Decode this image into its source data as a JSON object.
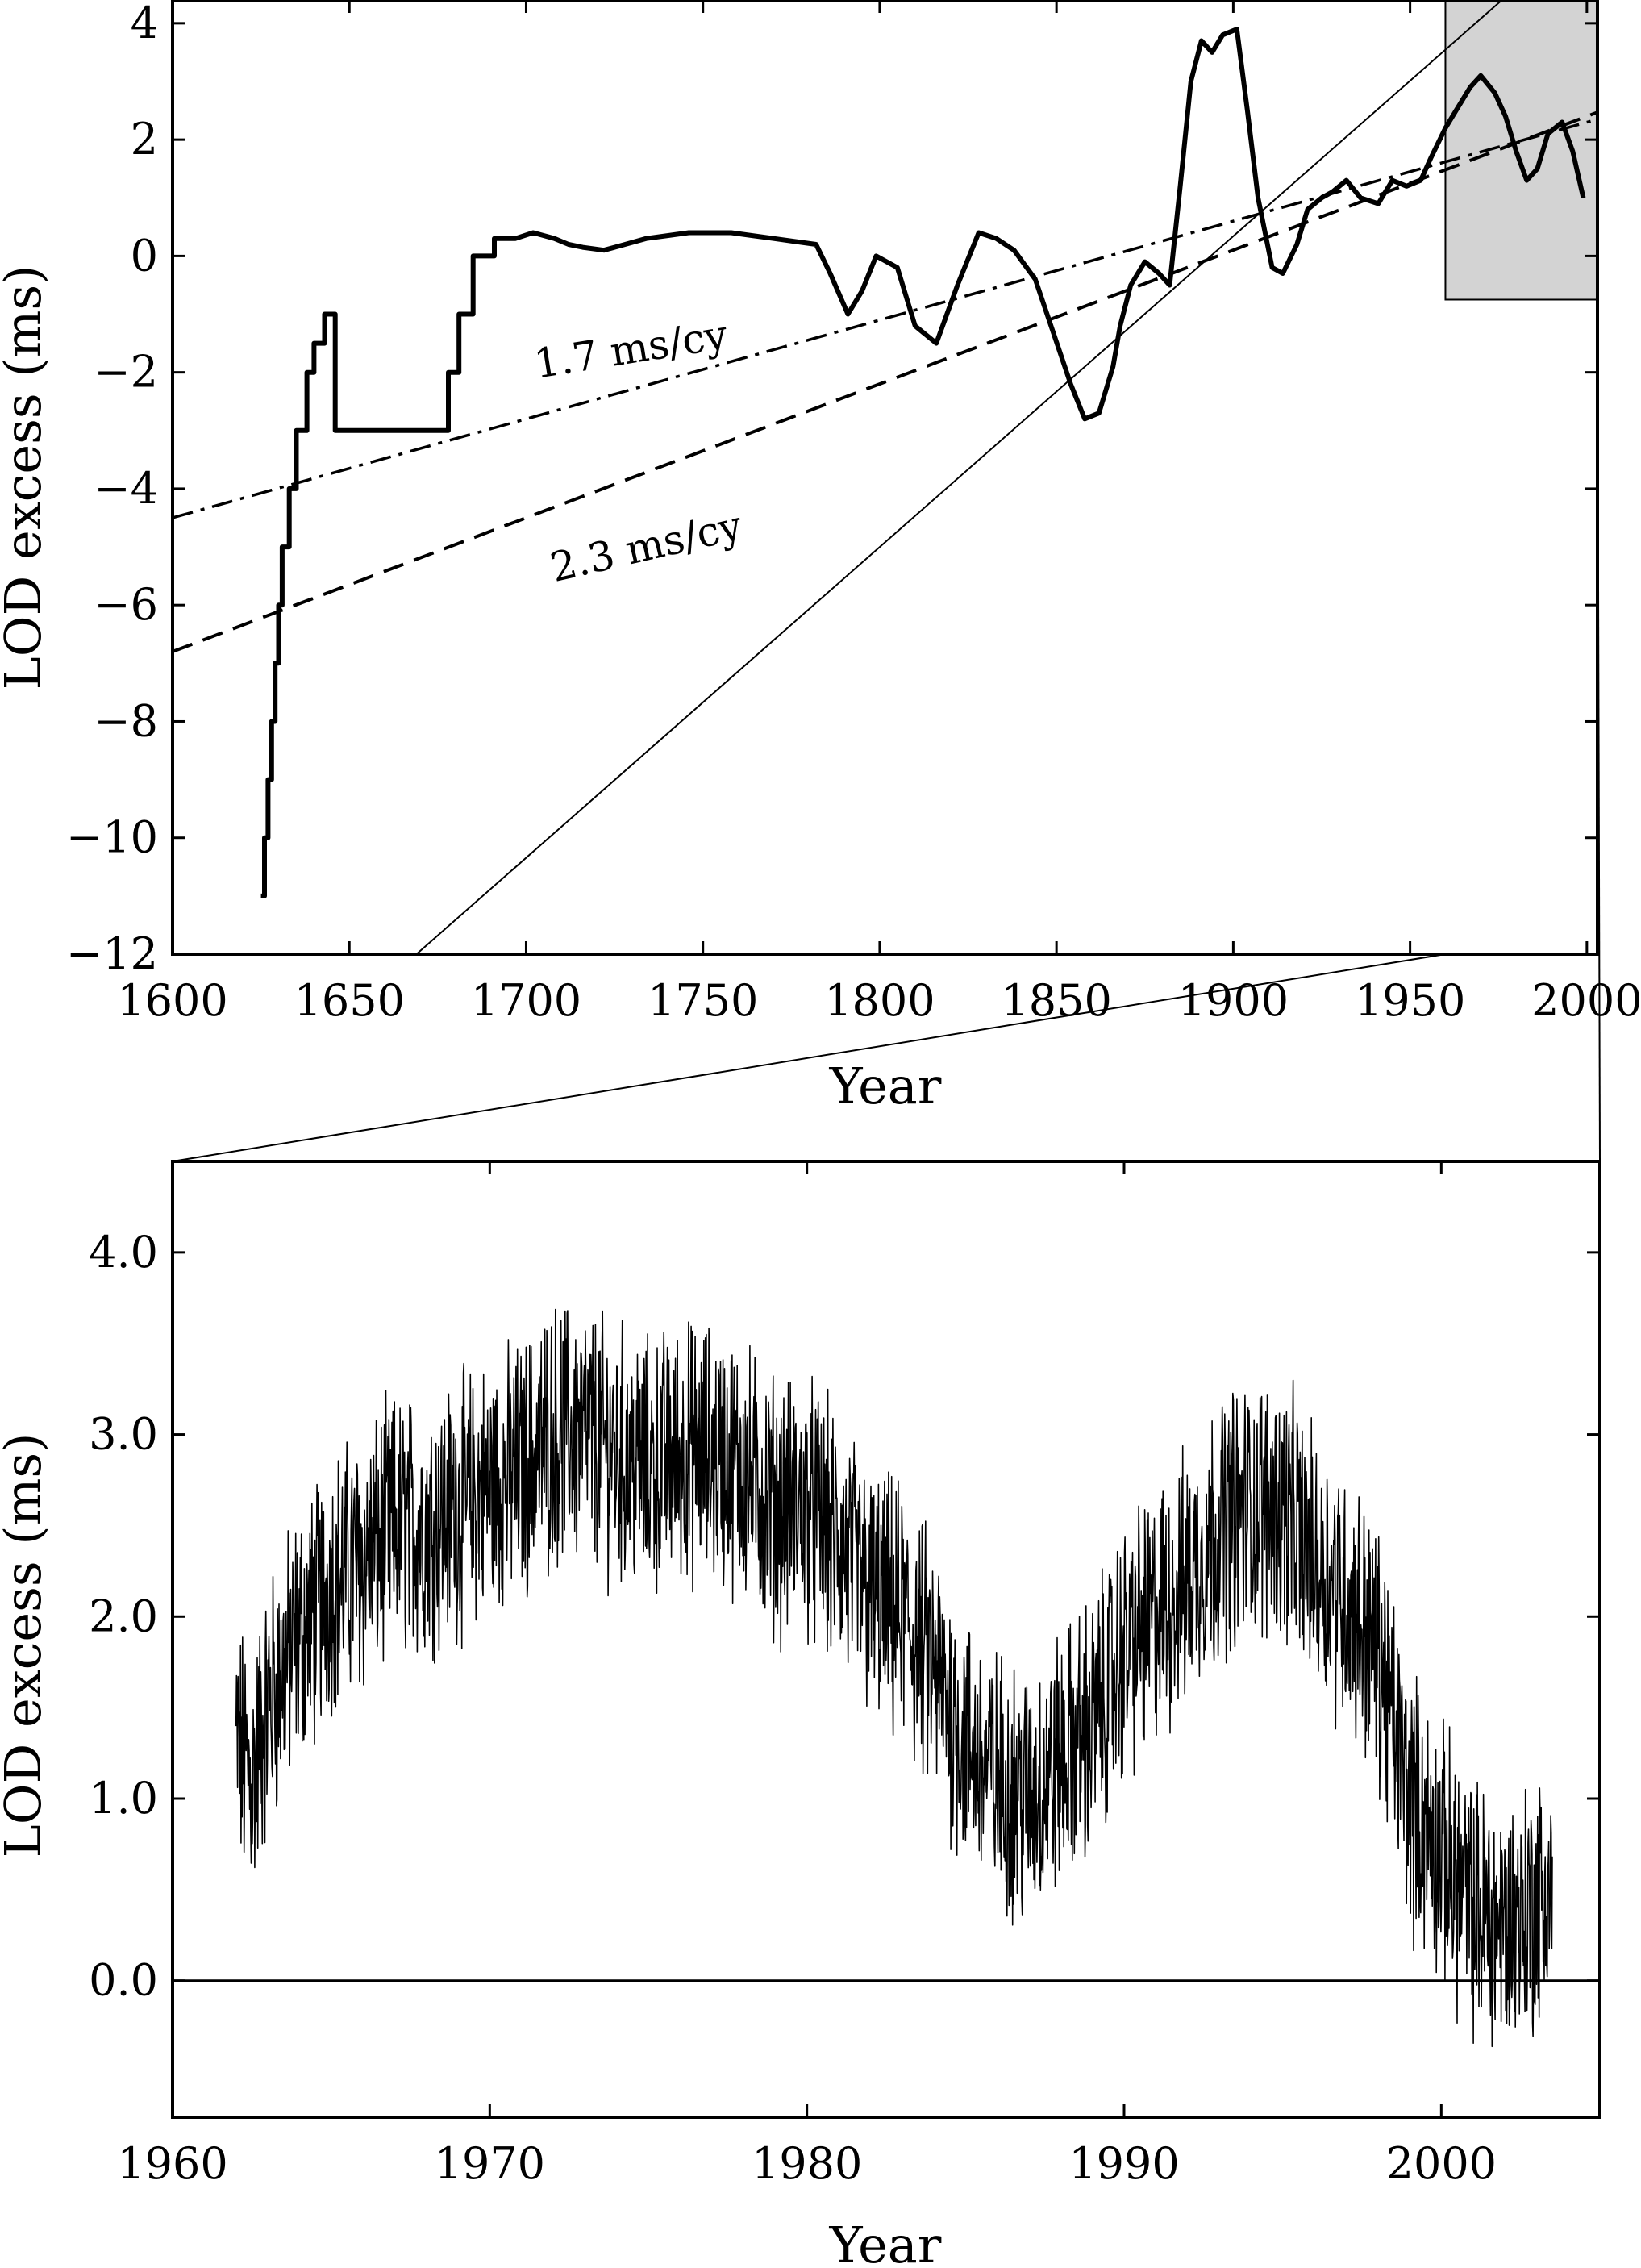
{
  "chart_data": [
    {
      "type": "line",
      "xlabel": "Year",
      "ylabel": "LOD excess (ms)",
      "xlim": [
        1600,
        2003
      ],
      "ylim": [
        -12,
        4.4
      ],
      "xticks": [
        1600,
        1650,
        1700,
        1750,
        1800,
        1850,
        1900,
        1950,
        2000
      ],
      "yticks": [
        4,
        2,
        0,
        -2,
        -4,
        -6,
        -8,
        -10,
        -12
      ],
      "xtick_labels": [
        "1600",
        "1650",
        "1700",
        "1750",
        "1800",
        "1850",
        "1900",
        "1950",
        "2000"
      ],
      "ytick_labels": [
        "4",
        "2",
        "0",
        "−2",
        "−4",
        "−6",
        "−8",
        "−10",
        "−12"
      ],
      "grid": false,
      "series": [
        {
          "style": "solid-thick",
          "x": [
            1625,
            1626,
            1626,
            1627,
            1627,
            1628,
            1628,
            1629,
            1629,
            1630,
            1630,
            1631,
            1631,
            1633,
            1633,
            1635,
            1635,
            1638,
            1638,
            1640,
            1640,
            1643,
            1643,
            1646,
            1646,
            1678,
            1678,
            1681,
            1681,
            1685,
            1685,
            1691,
            1691,
            1697,
            1702,
            1708,
            1712,
            1716,
            1722,
            1728,
            1734,
            1740,
            1746,
            1752,
            1758,
            1764,
            1770,
            1776,
            1782,
            1786,
            1791,
            1795,
            1799,
            1805,
            1810,
            1816,
            1822,
            1828,
            1833,
            1838,
            1844,
            1849,
            1854,
            1858,
            1862,
            1866,
            1868,
            1871,
            1875,
            1879,
            1882,
            1885,
            1888,
            1891,
            1894,
            1897,
            1901,
            1904,
            1907,
            1911,
            1914,
            1918,
            1921,
            1925,
            1928,
            1932,
            1936,
            1941,
            1945,
            1949,
            1953,
            1956,
            1960,
            1963,
            1967,
            1970,
            1974,
            1977,
            1980,
            1983,
            1986,
            1989,
            1993,
            1996,
            1999
          ],
          "y": [
            -11,
            -11,
            -10,
            -10,
            -9,
            -9,
            -8,
            -8,
            -7,
            -7,
            -6,
            -6,
            -5,
            -5,
            -4,
            -4,
            -3,
            -3,
            -2,
            -2,
            -1.5,
            -1.5,
            -1,
            -1,
            -3,
            -3,
            -2,
            -2,
            -1,
            -1,
            0,
            0,
            0.3,
            0.3,
            0.4,
            0.3,
            0.2,
            0.15,
            0.1,
            0.2,
            0.3,
            0.35,
            0.4,
            0.4,
            0.4,
            0.35,
            0.3,
            0.25,
            0.2,
            -0.3,
            -1,
            -0.6,
            0,
            -0.2,
            -1.2,
            -1.5,
            -0.5,
            0.4,
            0.3,
            0.1,
            -0.4,
            -1.3,
            -2.2,
            -2.8,
            -2.7,
            -1.9,
            -1.2,
            -0.5,
            -0.1,
            -0.3,
            -0.5,
            1.2,
            3.0,
            3.7,
            3.5,
            3.8,
            3.9,
            2.5,
            1.0,
            -0.2,
            -0.3,
            0.2,
            0.8,
            1.0,
            1.1,
            1.3,
            1.0,
            0.9,
            1.3,
            1.2,
            1.3,
            1.7,
            2.2,
            2.5,
            2.9,
            3.1,
            2.8,
            2.4,
            1.8,
            1.3,
            1.5,
            2.1,
            2.3,
            1.8,
            1.0
          ]
        },
        {
          "style": "dash-dot",
          "x": [
            1600,
            2003
          ],
          "y": [
            -4.5,
            2.35
          ]
        },
        {
          "style": "dashed",
          "x": [
            1600,
            2003
          ],
          "y": [
            -6.8,
            2.47
          ]
        },
        {
          "style": "thin",
          "x": [
            1669,
            1976
          ],
          "y": [
            -12,
            4.4
          ]
        }
      ],
      "annotations": [
        {
          "text": "1.7 ms/cy",
          "x": 1703,
          "y": -2.1,
          "angle": -9
        },
        {
          "text": "2.3 ms/cy",
          "x": 1708,
          "y": -5.6,
          "angle": -13
        }
      ],
      "highlight_box": {
        "x": [
          1960,
          2003
        ],
        "y": [
          -0.75,
          4.4
        ],
        "color": "#d3d3d3"
      }
    },
    {
      "type": "line",
      "xlabel": "Year",
      "ylabel": "LOD excess (ms)",
      "xlim": [
        1960,
        2005
      ],
      "ylim": [
        -0.75,
        4.5
      ],
      "xticks": [
        1960,
        1970,
        1980,
        1990,
        2000
      ],
      "yticks": [
        4,
        3,
        2,
        1,
        0
      ],
      "xtick_labels": [
        "1960",
        "1970",
        "1980",
        "1990",
        "2000"
      ],
      "ytick_labels": [
        "4.0",
        "3.0",
        "2.0",
        "1.0",
        "0.0"
      ],
      "grid": false,
      "zero_line": 0,
      "series": [
        {
          "style": "thin-noisy",
          "x": [
            1962,
            1962.5,
            1963,
            1963.5,
            1964,
            1964.5,
            1965,
            1966,
            1967,
            1968,
            1969,
            1970,
            1971,
            1972,
            1973,
            1974,
            1975,
            1976,
            1977,
            1978,
            1979,
            1980,
            1981,
            1982,
            1983,
            1984,
            1985,
            1986,
            1987,
            1988,
            1989,
            1990,
            1991,
            1992,
            1993,
            1994,
            1995,
            1996,
            1997,
            1998,
            1999,
            2000,
            2001,
            2002,
            2003.5
          ],
          "y": [
            1.3,
            1.1,
            1.5,
            1.7,
            1.9,
            2.0,
            2.2,
            2.3,
            2.5,
            2.5,
            2.6,
            2.7,
            2.8,
            3.0,
            3.0,
            2.9,
            2.8,
            2.9,
            2.9,
            2.8,
            2.6,
            2.6,
            2.4,
            2.1,
            2.0,
            1.7,
            1.3,
            1.1,
            1.0,
            1.2,
            1.4,
            1.8,
            2.0,
            2.2,
            2.5,
            2.6,
            2.6,
            2.3,
            2.1,
            1.8,
            1.0,
            0.7,
            0.4,
            0.3,
            0.5
          ]
        }
      ]
    }
  ]
}
